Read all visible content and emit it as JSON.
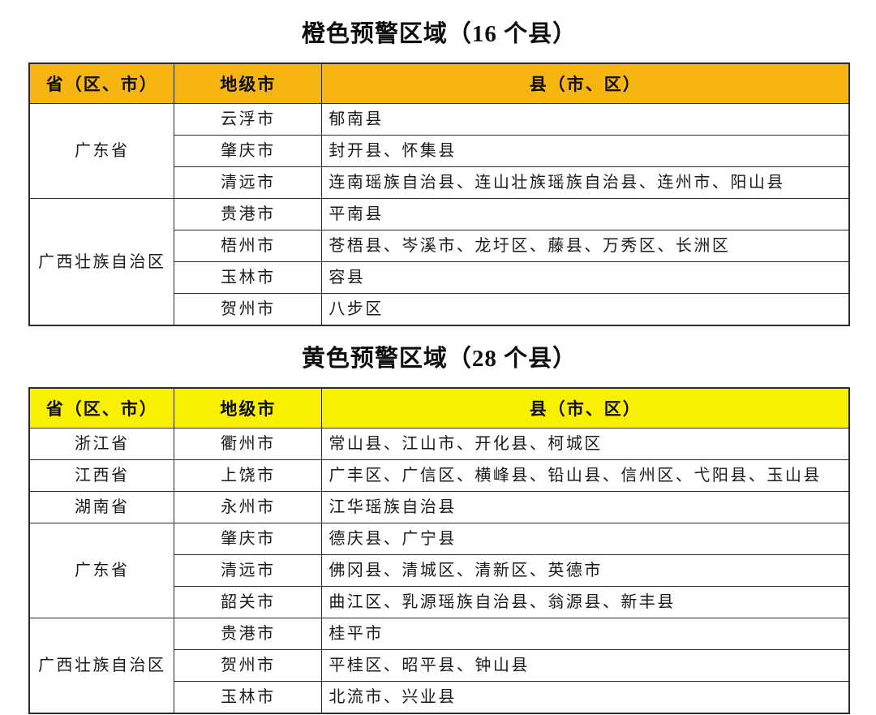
{
  "tables": [
    {
      "title": "橙色预警区域（16 个县）",
      "header_bg": "#F7B512",
      "columns": [
        "省（区、市）",
        "地级市",
        "县（市、区）"
      ],
      "groups": [
        {
          "province": "广东省",
          "rows": [
            {
              "city": "云浮市",
              "counties": "郁南县"
            },
            {
              "city": "肇庆市",
              "counties": "封开县、怀集县"
            },
            {
              "city": "清远市",
              "counties": "连南瑶族自治县、连山壮族瑶族自治县、连州市、阳山县"
            }
          ]
        },
        {
          "province": "广西壮族自治区",
          "rows": [
            {
              "city": "贵港市",
              "counties": "平南县"
            },
            {
              "city": "梧州市",
              "counties": "苍梧县、岑溪市、龙圩区、藤县、万秀区、长洲区"
            },
            {
              "city": "玉林市",
              "counties": "容县"
            },
            {
              "city": "贺州市",
              "counties": "八步区"
            }
          ]
        }
      ]
    },
    {
      "title": "黄色预警区域（28 个县）",
      "header_bg": "#F8F000",
      "columns": [
        "省（区、市）",
        "地级市",
        "县（市、区）"
      ],
      "groups": [
        {
          "province": "浙江省",
          "rows": [
            {
              "city": "衢州市",
              "counties": "常山县、江山市、开化县、柯城区"
            }
          ]
        },
        {
          "province": "江西省",
          "rows": [
            {
              "city": "上饶市",
              "counties": "广丰区、广信区、横峰县、铅山县、信州区、弋阳县、玉山县"
            }
          ]
        },
        {
          "province": "湖南省",
          "rows": [
            {
              "city": "永州市",
              "counties": "江华瑶族自治县"
            }
          ]
        },
        {
          "province": "广东省",
          "rows": [
            {
              "city": "肇庆市",
              "counties": "德庆县、广宁县"
            },
            {
              "city": "清远市",
              "counties": "佛冈县、清城区、清新区、英德市"
            },
            {
              "city": "韶关市",
              "counties": "曲江区、乳源瑶族自治县、翁源县、新丰县"
            }
          ]
        },
        {
          "province": "广西壮族自治区",
          "rows": [
            {
              "city": "贵港市",
              "counties": "桂平市"
            },
            {
              "city": "贺州市",
              "counties": "平桂区、昭平县、钟山县"
            },
            {
              "city": "玉林市",
              "counties": "北流市、兴业县"
            }
          ]
        }
      ]
    }
  ]
}
